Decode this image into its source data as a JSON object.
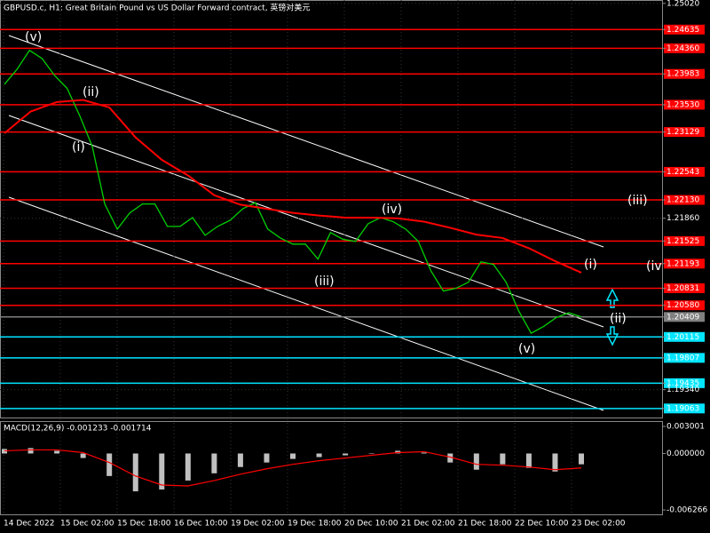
{
  "header": {
    "title": "GBPUSD.c, H1:  Great Britain Pound vs US Dollar Forward contract, 英镑对美元"
  },
  "chart_data": [
    {
      "type": "line",
      "ylim": [
        1.1893,
        1.2507
      ],
      "grid": true,
      "yticks": [
        {
          "value": 1.2502,
          "label": "1.25020"
        },
        {
          "value": 1.24635,
          "label": "1.24635"
        },
        {
          "value": 1.2436,
          "label": "1.24360"
        },
        {
          "value": 1.23983,
          "label": "1.23983"
        },
        {
          "value": 1.2353,
          "label": "1.23530"
        },
        {
          "value": 1.23129,
          "label": "1.23129"
        },
        {
          "value": 1.22543,
          "label": "1.22543"
        },
        {
          "value": 1.2213,
          "label": "1.22130"
        },
        {
          "value": 1.2186,
          "label": "1.21860"
        },
        {
          "value": 1.21525,
          "label": "1.21525"
        },
        {
          "value": 1.21193,
          "label": "1.21193"
        },
        {
          "value": 1.20831,
          "label": "1.20831"
        },
        {
          "value": 1.2058,
          "label": "1.20580"
        },
        {
          "value": 1.20409,
          "label": "1.20409"
        },
        {
          "value": 1.20115,
          "label": "1.20115"
        },
        {
          "value": 1.19807,
          "label": "1.19807"
        },
        {
          "value": 1.19435,
          "label": "1.19435"
        },
        {
          "value": 1.1934,
          "label": "1.19340"
        },
        {
          "value": 1.19063,
          "label": "1.19063"
        }
      ],
      "levels": [
        {
          "value": 1.24635,
          "color": "#ff0000"
        },
        {
          "value": 1.2436,
          "color": "#ff0000"
        },
        {
          "value": 1.23983,
          "color": "#ff0000"
        },
        {
          "value": 1.2353,
          "color": "#ff0000"
        },
        {
          "value": 1.23129,
          "color": "#ff0000"
        },
        {
          "value": 1.22543,
          "color": "#ff0000"
        },
        {
          "value": 1.2213,
          "color": "#ff0000"
        },
        {
          "value": 1.21525,
          "color": "#ff0000"
        },
        {
          "value": 1.21193,
          "color": "#ff0000"
        },
        {
          "value": 1.20831,
          "color": "#ff0000"
        },
        {
          "value": 1.2058,
          "color": "#ff0000"
        },
        {
          "value": 1.20409,
          "color": "#808080"
        },
        {
          "value": 1.20115,
          "color": "#00e5ff"
        },
        {
          "value": 1.19807,
          "color": "#00e5ff"
        },
        {
          "value": 1.19435,
          "color": "#00e5ff"
        },
        {
          "value": 1.19063,
          "color": "#00e5ff"
        }
      ],
      "series": [
        {
          "color": "#00d000",
          "values": [
            1.2383,
            1.2405,
            1.2433,
            1.2421,
            1.2396,
            1.2377,
            1.2337,
            1.2292,
            1.2207,
            1.217,
            1.2194,
            1.2207,
            1.2207,
            1.2174,
            1.2174,
            1.2187,
            1.2161,
            1.2174,
            1.2183,
            1.22,
            1.2209,
            1.217,
            1.2157,
            1.2148,
            1.2148,
            1.2126,
            1.2165,
            1.2155,
            1.2152,
            1.2178,
            1.2187,
            1.2181,
            1.217,
            1.2152,
            1.2109,
            1.2079,
            1.2083,
            1.2092,
            1.2122,
            1.2118,
            1.2092,
            1.205,
            1.2017,
            1.2027,
            1.204,
            1.2047,
            1.2041
          ]
        },
        {
          "color": "#ff0000",
          "values": [
            1.2311,
            1.2343,
            1.2357,
            1.236,
            1.2349,
            1.2305,
            1.2272,
            1.2249,
            1.222,
            1.2206,
            1.22,
            1.2194,
            1.219,
            1.2187,
            1.2187,
            1.2186,
            1.2181,
            1.2172,
            1.2162,
            1.2157,
            1.2142,
            1.2123,
            1.2106
          ]
        }
      ],
      "time_labels": [
        "14 Dec 2022",
        "15 Dec 02:00",
        "15 Dec 18:00",
        "16 Dec 10:00",
        "19 Dec 02:00",
        "19 Dec 18:00",
        "20 Dec 10:00",
        "21 Dec 02:00",
        "21 Dec 18:00",
        "22 Dec 10:00",
        "23 Dec 02:00"
      ],
      "annotations": [
        "(v)",
        "(ii)",
        "(i)",
        "(iv)",
        "(iii)",
        "(v)",
        "(i)",
        "(ii)",
        "(iii)",
        "(iv"
      ]
    },
    {
      "type": "macd",
      "title": "MACD(12,26,9) -0.001233 -0.001714",
      "ylim": [
        -0.00705,
        0.0035
      ],
      "yticks": [
        {
          "value": 0.003001,
          "label": "0.003001"
        },
        {
          "value": 0,
          "label": "0.000000"
        },
        {
          "value": -0.006266,
          "label": "-0.006266"
        }
      ],
      "series": [
        {
          "color": "#c0c0c0",
          "values": [
            0.0005,
            0.0006,
            0.0003,
            -0.0005,
            -0.0025,
            -0.0042,
            -0.004,
            -0.003,
            -0.0022,
            -0.0015,
            -0.001,
            -0.0006,
            -0.0004,
            -0.0002,
            0,
            0.0003,
            0.0001,
            -0.001,
            -0.0018,
            -0.0012,
            -0.0016,
            -0.002,
            -0.0012
          ]
        },
        {
          "color": "#ff0000",
          "values": [
            0.0003,
            0.0004,
            0.0004,
            0.0001,
            -0.001,
            -0.0025,
            -0.0035,
            -0.0036,
            -0.003,
            -0.0023,
            -0.0017,
            -0.0012,
            -0.0008,
            -0.0005,
            -0.0002,
            0.0001,
            0.0002,
            -0.0004,
            -0.0012,
            -0.0013,
            -0.0015,
            -0.0018,
            -0.0016
          ]
        }
      ]
    }
  ]
}
